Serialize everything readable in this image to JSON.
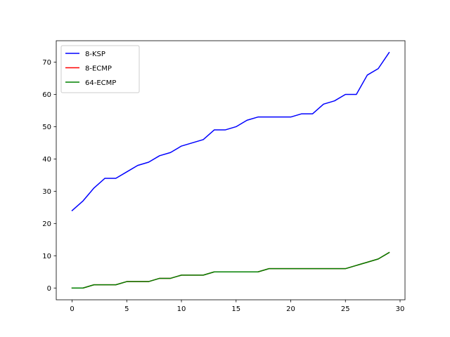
{
  "chart_data": {
    "type": "line",
    "title": "",
    "xlabel": "",
    "ylabel": "",
    "xlim": [
      -1.45,
      30.45
    ],
    "ylim": [
      -3.65,
      76.65
    ],
    "xticks": [
      0,
      5,
      10,
      15,
      20,
      25,
      30
    ],
    "yticks": [
      0,
      10,
      20,
      30,
      40,
      50,
      60,
      70
    ],
    "grid": false,
    "legend_position": "top-left",
    "x": [
      0,
      1,
      2,
      3,
      4,
      5,
      6,
      7,
      8,
      9,
      10,
      11,
      12,
      13,
      14,
      15,
      16,
      17,
      18,
      19,
      20,
      21,
      22,
      23,
      24,
      25,
      26,
      27,
      28,
      29
    ],
    "series": [
      {
        "name": "8-KSP",
        "color": "#0000ff",
        "values": [
          24,
          27,
          31,
          34,
          34,
          36,
          38,
          39,
          41,
          42,
          44,
          45,
          46,
          49,
          49,
          50,
          52,
          53,
          53,
          53,
          53,
          54,
          54,
          57,
          58,
          60,
          60,
          66,
          68,
          73
        ]
      },
      {
        "name": "8-ECMP",
        "color": "#ff0000",
        "values": [
          0,
          0,
          1,
          1,
          1,
          2,
          2,
          2,
          3,
          3,
          4,
          4,
          4,
          5,
          5,
          5,
          5,
          5,
          6,
          6,
          6,
          6,
          6,
          6,
          6,
          6,
          7,
          8,
          9,
          11
        ]
      },
      {
        "name": "64-ECMP",
        "color": "#008000",
        "values": [
          0,
          0,
          1,
          1,
          1,
          2,
          2,
          2,
          3,
          3,
          4,
          4,
          4,
          5,
          5,
          5,
          5,
          5,
          6,
          6,
          6,
          6,
          6,
          6,
          6,
          6,
          7,
          8,
          9,
          11
        ]
      }
    ]
  }
}
